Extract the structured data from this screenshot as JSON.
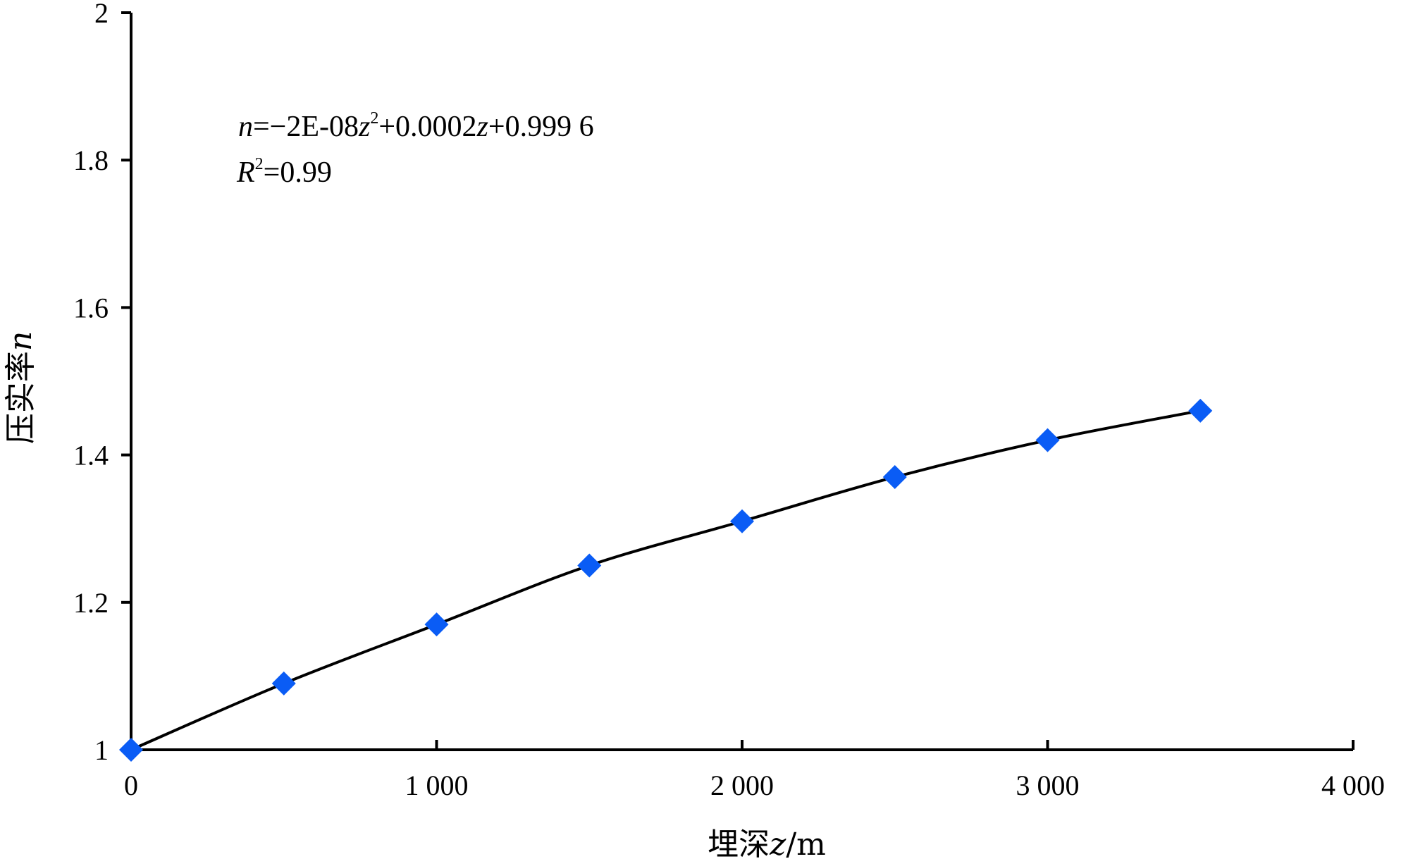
{
  "chart_data": {
    "type": "scatter",
    "x_label_text": "埋深",
    "x_label_var": "z",
    "x_label_unit": "/m",
    "y_label_text": "压实率",
    "y_label_var": "n",
    "xlim": [
      0,
      4000
    ],
    "ylim": [
      1,
      2
    ],
    "x_ticks": [
      0,
      1000,
      2000,
      3000,
      4000
    ],
    "x_tick_labels": [
      "0",
      "1 000",
      "2 000",
      "3 000",
      "4 000"
    ],
    "y_ticks": [
      1,
      1.2,
      1.4,
      1.6,
      1.8,
      2
    ],
    "y_tick_labels": [
      "1",
      "1.2",
      "1.4",
      "1.6",
      "1.8",
      "2"
    ],
    "grid": false,
    "series": [
      {
        "x": [
          0,
          500,
          1000,
          1500,
          2000,
          2500,
          3000,
          3500
        ],
        "y": [
          1.0,
          1.09,
          1.17,
          1.25,
          1.31,
          1.37,
          1.42,
          1.46
        ],
        "marker": "diamond",
        "marker_color": "#0a5cf5",
        "line_color": "#000000"
      }
    ],
    "annotation": {
      "eq_var": "n",
      "eq_part1": "=−2E-08",
      "eq_z1": "z",
      "eq_sup": "2",
      "eq_part2": "+0.0002",
      "eq_z2": "z",
      "eq_part3": "+0.999 6",
      "r2_var": "R",
      "r2_sup": "2",
      "r2_rest": "=0.99"
    }
  }
}
